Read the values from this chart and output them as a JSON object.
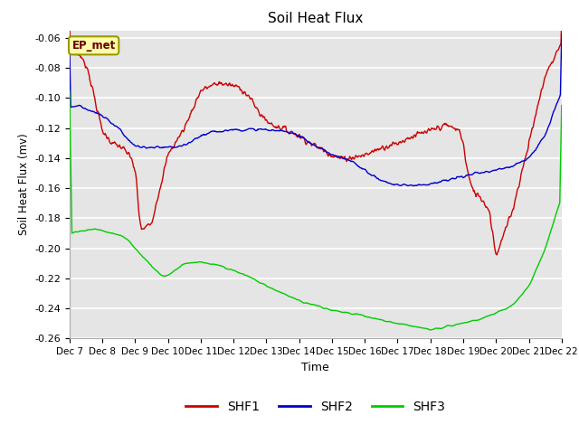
{
  "title": "Soil Heat Flux",
  "ylabel": "Soil Heat Flux (mv)",
  "xlabel": "Time",
  "ylim": [
    -0.26,
    -0.055
  ],
  "yticks": [
    -0.26,
    -0.24,
    -0.22,
    -0.2,
    -0.18,
    -0.16,
    -0.14,
    -0.12,
    -0.1,
    -0.08,
    -0.06
  ],
  "xtick_labels": [
    "Dec 7",
    "Dec 8",
    "Dec 9",
    "Dec 10",
    "Dec 11",
    "Dec 12",
    "Dec 13",
    "Dec 14",
    "Dec 15",
    "Dec 16",
    "Dec 17",
    "Dec 18",
    "Dec 19",
    "Dec 20",
    "Dec 21",
    "Dec 22"
  ],
  "background_color": "#e5e5e5",
  "grid_color": "#ffffff",
  "shf1_color": "#cc0000",
  "shf2_color": "#0000cc",
  "shf3_color": "#00cc00",
  "annotation_text": "EP_met",
  "annotation_bg": "#ffffaa",
  "annotation_border": "#999900",
  "legend_labels": [
    "SHF1",
    "SHF2",
    "SHF3"
  ],
  "shf1_xpts": [
    0,
    0.15,
    0.3,
    0.55,
    1.0,
    1.3,
    1.6,
    1.9,
    2.05,
    2.1,
    2.2,
    2.5,
    3.0,
    3.5,
    4.0,
    4.3,
    4.6,
    4.8,
    5.0,
    5.2,
    5.5,
    5.8,
    6.0,
    6.2,
    6.5,
    6.8,
    7.0,
    7.2,
    7.5,
    7.8,
    8.0,
    8.2,
    8.5,
    9.0,
    9.5,
    10.0,
    10.5,
    11.0,
    11.2,
    11.5,
    11.7,
    11.9,
    12.0,
    12.1,
    12.2,
    12.3,
    12.5,
    12.8,
    13.0,
    13.5,
    14.0,
    14.5,
    15.0
  ],
  "shf1_ypts": [
    -0.068,
    -0.069,
    -0.071,
    -0.08,
    -0.122,
    -0.13,
    -0.133,
    -0.14,
    -0.155,
    -0.175,
    -0.188,
    -0.183,
    -0.138,
    -0.12,
    -0.095,
    -0.092,
    -0.09,
    -0.091,
    -0.092,
    -0.093,
    -0.1,
    -0.11,
    -0.115,
    -0.118,
    -0.12,
    -0.123,
    -0.125,
    -0.128,
    -0.132,
    -0.135,
    -0.138,
    -0.14,
    -0.14,
    -0.138,
    -0.133,
    -0.13,
    -0.125,
    -0.122,
    -0.12,
    -0.118,
    -0.12,
    -0.122,
    -0.13,
    -0.145,
    -0.155,
    -0.162,
    -0.165,
    -0.175,
    -0.205,
    -0.175,
    -0.13,
    -0.085,
    -0.063
  ],
  "shf2_xpts": [
    0,
    0.3,
    0.5,
    0.8,
    1.0,
    1.2,
    1.5,
    1.8,
    2.0,
    2.3,
    2.5,
    3.0,
    3.5,
    4.0,
    4.5,
    5.0,
    5.5,
    6.0,
    6.3,
    6.5,
    6.8,
    7.0,
    7.2,
    7.5,
    7.8,
    8.0,
    8.3,
    8.6,
    9.0,
    9.5,
    10.0,
    10.5,
    11.0,
    11.5,
    12.0,
    12.5,
    13.0,
    13.5,
    14.0,
    14.5,
    15.0
  ],
  "shf2_ypts": [
    -0.106,
    -0.105,
    -0.107,
    -0.11,
    -0.112,
    -0.115,
    -0.12,
    -0.128,
    -0.132,
    -0.133,
    -0.133,
    -0.133,
    -0.132,
    -0.125,
    -0.122,
    -0.121,
    -0.121,
    -0.121,
    -0.122,
    -0.122,
    -0.123,
    -0.125,
    -0.128,
    -0.132,
    -0.135,
    -0.138,
    -0.14,
    -0.142,
    -0.148,
    -0.155,
    -0.158,
    -0.158,
    -0.157,
    -0.155,
    -0.152,
    -0.15,
    -0.148,
    -0.145,
    -0.14,
    -0.125,
    -0.095
  ],
  "shf3_xpts": [
    0,
    0.2,
    0.5,
    0.8,
    1.0,
    1.3,
    1.6,
    1.8,
    2.0,
    2.3,
    2.5,
    2.8,
    3.0,
    3.3,
    3.5,
    4.0,
    4.5,
    5.0,
    5.5,
    6.0,
    6.5,
    7.0,
    7.5,
    8.0,
    8.5,
    9.0,
    9.5,
    10.0,
    10.5,
    11.0,
    11.5,
    12.0,
    12.5,
    13.0,
    13.5,
    14.0,
    14.5,
    15.0
  ],
  "shf3_ypts": [
    -0.191,
    -0.189,
    -0.188,
    -0.187,
    -0.188,
    -0.19,
    -0.192,
    -0.195,
    -0.2,
    -0.207,
    -0.212,
    -0.218,
    -0.218,
    -0.213,
    -0.21,
    -0.209,
    -0.211,
    -0.215,
    -0.219,
    -0.225,
    -0.23,
    -0.235,
    -0.238,
    -0.241,
    -0.243,
    -0.245,
    -0.248,
    -0.25,
    -0.252,
    -0.254,
    -0.252,
    -0.25,
    -0.247,
    -0.243,
    -0.238,
    -0.225,
    -0.2,
    -0.165
  ]
}
